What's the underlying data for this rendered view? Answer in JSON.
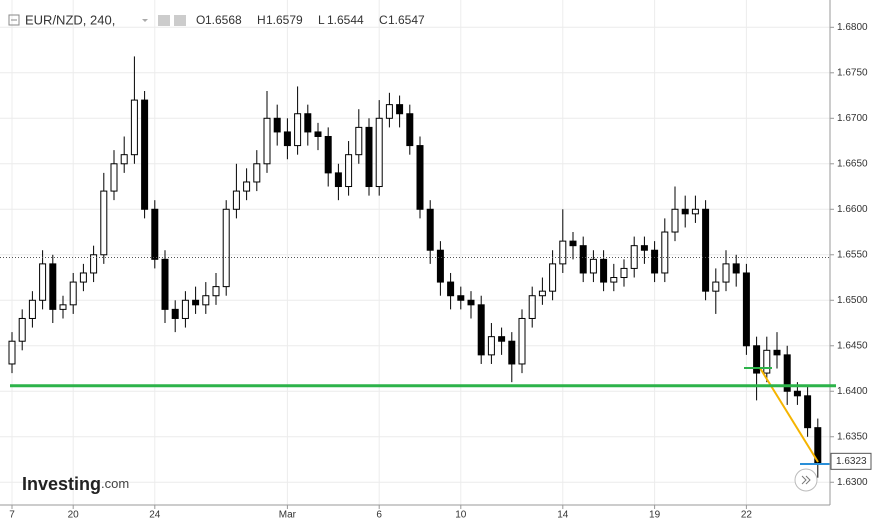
{
  "chart_data": {
    "type": "candlestick",
    "header": {
      "symbol": "EUR/NZD, 240,",
      "labels": [
        "O",
        "H",
        "L",
        "C"
      ],
      "values": [
        1.6568,
        1.6579,
        1.6544,
        1.6547
      ]
    },
    "logo": {
      "brand": "Investing",
      "suffix": ".com"
    },
    "categories": [
      "7",
      null,
      null,
      null,
      null,
      null,
      "20",
      null,
      null,
      null,
      null,
      null,
      null,
      null,
      "24",
      null,
      null,
      null,
      null,
      null,
      null,
      null,
      null,
      null,
      null,
      null,
      null,
      "Mar",
      null,
      null,
      null,
      null,
      null,
      null,
      null,
      null,
      "6",
      null,
      null,
      null,
      null,
      null,
      null,
      null,
      "10",
      null,
      null,
      null,
      null,
      null,
      null,
      null,
      null,
      null,
      "14",
      null,
      null,
      null,
      null,
      null,
      null,
      null,
      null,
      "19",
      null,
      null,
      null,
      null,
      null,
      null,
      null,
      null,
      "22",
      null,
      null,
      null,
      null,
      null,
      null,
      null
    ],
    "open": [
      1.643,
      1.6455,
      1.648,
      1.65,
      1.654,
      1.649,
      1.6495,
      1.652,
      1.653,
      1.655,
      1.662,
      1.665,
      1.666,
      1.672,
      1.66,
      1.6545,
      1.649,
      1.648,
      1.65,
      1.6495,
      1.6505,
      1.6515,
      1.66,
      1.662,
      1.663,
      1.665,
      1.67,
      1.6685,
      1.667,
      1.6705,
      1.6685,
      1.668,
      1.664,
      1.6625,
      1.666,
      1.669,
      1.6625,
      1.67,
      1.6715,
      1.6705,
      1.667,
      1.66,
      1.6555,
      1.652,
      1.6505,
      1.65,
      1.6495,
      1.644,
      1.646,
      1.6455,
      1.643,
      1.648,
      1.6505,
      1.651,
      1.654,
      1.6565,
      1.656,
      1.653,
      1.6545,
      1.652,
      1.6525,
      1.6535,
      1.656,
      1.6555,
      1.653,
      1.6575,
      1.66,
      1.6595,
      1.66,
      1.651,
      1.652,
      1.654,
      1.653,
      1.645,
      1.642,
      1.6445,
      1.644,
      1.64,
      1.6395,
      1.636
    ],
    "high": [
      1.6465,
      1.649,
      1.651,
      1.6555,
      1.655,
      1.6505,
      1.653,
      1.654,
      1.656,
      1.664,
      1.6665,
      1.668,
      1.6768,
      1.673,
      1.661,
      1.6555,
      1.65,
      1.651,
      1.6515,
      1.652,
      1.653,
      1.661,
      1.665,
      1.6645,
      1.6665,
      1.673,
      1.6715,
      1.67,
      1.6735,
      1.6715,
      1.6695,
      1.669,
      1.665,
      1.6675,
      1.671,
      1.67,
      1.672,
      1.6728,
      1.6725,
      1.6715,
      1.668,
      1.661,
      1.6565,
      1.653,
      1.6515,
      1.651,
      1.6505,
      1.6475,
      1.647,
      1.6465,
      1.649,
      1.6515,
      1.6525,
      1.6555,
      1.66,
      1.6575,
      1.657,
      1.6555,
      1.6555,
      1.654,
      1.6545,
      1.657,
      1.657,
      1.6565,
      1.659,
      1.6625,
      1.6615,
      1.6615,
      1.661,
      1.6535,
      1.6555,
      1.655,
      1.654,
      1.646,
      1.646,
      1.6465,
      1.645,
      1.641,
      1.6405,
      1.637
    ],
    "low": [
      1.642,
      1.6445,
      1.647,
      1.649,
      1.6475,
      1.648,
      1.6485,
      1.651,
      1.652,
      1.654,
      1.661,
      1.664,
      1.665,
      1.659,
      1.6535,
      1.6475,
      1.6465,
      1.647,
      1.6485,
      1.6485,
      1.6495,
      1.6505,
      1.659,
      1.661,
      1.662,
      1.664,
      1.667,
      1.6655,
      1.666,
      1.667,
      1.6665,
      1.6625,
      1.661,
      1.6615,
      1.665,
      1.6615,
      1.6615,
      1.669,
      1.669,
      1.666,
      1.659,
      1.654,
      1.6505,
      1.649,
      1.649,
      1.648,
      1.643,
      1.643,
      1.644,
      1.641,
      1.642,
      1.647,
      1.6495,
      1.65,
      1.653,
      1.6545,
      1.652,
      1.652,
      1.651,
      1.651,
      1.6515,
      1.6525,
      1.654,
      1.652,
      1.652,
      1.6565,
      1.658,
      1.6585,
      1.65,
      1.6485,
      1.651,
      1.6515,
      1.644,
      1.639,
      1.641,
      1.6425,
      1.6385,
      1.6385,
      1.635,
      1.6305
    ],
    "close": [
      1.6455,
      1.648,
      1.65,
      1.654,
      1.649,
      1.6495,
      1.652,
      1.653,
      1.655,
      1.662,
      1.665,
      1.666,
      1.672,
      1.66,
      1.6545,
      1.649,
      1.648,
      1.65,
      1.6495,
      1.6505,
      1.6515,
      1.66,
      1.662,
      1.663,
      1.665,
      1.67,
      1.6685,
      1.667,
      1.6705,
      1.6685,
      1.668,
      1.664,
      1.6625,
      1.666,
      1.669,
      1.6625,
      1.67,
      1.6715,
      1.6705,
      1.667,
      1.66,
      1.6555,
      1.652,
      1.6505,
      1.65,
      1.6495,
      1.644,
      1.646,
      1.6455,
      1.643,
      1.648,
      1.6505,
      1.651,
      1.654,
      1.6565,
      1.656,
      1.653,
      1.6545,
      1.652,
      1.6525,
      1.6535,
      1.656,
      1.6555,
      1.653,
      1.6575,
      1.66,
      1.6595,
      1.66,
      1.651,
      1.652,
      1.654,
      1.653,
      1.645,
      1.642,
      1.6445,
      1.644,
      1.64,
      1.6395,
      1.636,
      1.632
    ],
    "ylim": [
      1.6275,
      1.683
    ],
    "yticks": [
      {
        "value": 1.63,
        "label": "1.6300"
      },
      {
        "value": 1.635,
        "label": "1.6350"
      },
      {
        "value": 1.64,
        "label": "1.6400"
      },
      {
        "value": 1.645,
        "label": "1.6450"
      },
      {
        "value": 1.65,
        "label": "1.6500"
      },
      {
        "value": 1.655,
        "label": "1.6550"
      },
      {
        "value": 1.66,
        "label": "1.6600"
      },
      {
        "value": 1.665,
        "label": "1.6650"
      },
      {
        "value": 1.67,
        "label": "1.6700"
      },
      {
        "value": 1.675,
        "label": "1.6750"
      },
      {
        "value": 1.68,
        "label": "1.6800"
      }
    ],
    "level": 1.6406,
    "last_price": 1.6323,
    "grid": true,
    "up_color": "#ffffff",
    "down_color": "#000000",
    "level_color": "#2db34a"
  }
}
